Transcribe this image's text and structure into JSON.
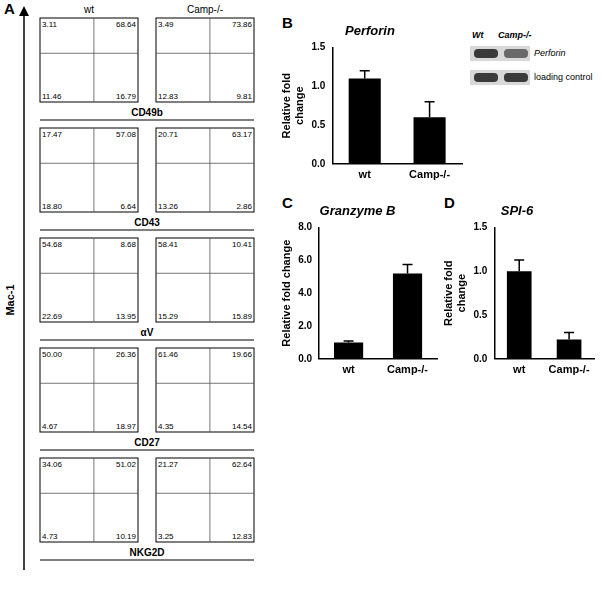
{
  "figure": {
    "panels": [
      "A",
      "B",
      "C",
      "D"
    ],
    "columns": [
      "wt",
      "Camp-/-"
    ],
    "y_label": "Mac-1"
  },
  "chart_data": [
    {
      "type": "quadrant",
      "panel": "A",
      "x_label": "CD49b",
      "tick_labels": false,
      "quadrant_values": [
        [
          3.11,
          68.64,
          11.46,
          16.79
        ],
        [
          3.49,
          73.86,
          12.83,
          9.81
        ]
      ]
    },
    {
      "type": "quadrant",
      "panel": "A",
      "x_label": "CD43",
      "tick_labels": false,
      "quadrant_values": [
        [
          17.47,
          57.08,
          18.8,
          6.64
        ],
        [
          20.71,
          63.17,
          13.26,
          2.86
        ]
      ]
    },
    {
      "type": "quadrant",
      "panel": "A",
      "x_label": "αV",
      "tick_labels": false,
      "quadrant_values": [
        [
          54.68,
          8.68,
          22.69,
          13.95
        ],
        [
          58.41,
          10.41,
          15.29,
          15.89
        ]
      ]
    },
    {
      "type": "quadrant",
      "panel": "A",
      "x_label": "CD27",
      "tick_labels": false,
      "quadrant_values": [
        [
          50.0,
          26.36,
          4.67,
          18.97
        ],
        [
          61.46,
          19.66,
          4.35,
          14.54
        ]
      ]
    },
    {
      "type": "quadrant",
      "panel": "A",
      "x_label": "NKG2D",
      "tick_labels": false,
      "quadrant_values": [
        [
          34.06,
          51.02,
          4.73,
          10.19
        ],
        [
          21.27,
          62.64,
          3.25,
          12.83
        ]
      ]
    },
    {
      "type": "bar",
      "panel": "B",
      "title": "Perforin",
      "categories": [
        "wt",
        "Camp-/-"
      ],
      "values": [
        1.1,
        0.6
      ],
      "errors": [
        0.1,
        0.2
      ],
      "color": "#000000",
      "y_label": "Relative fold change",
      "ylim": [
        0,
        1.5
      ],
      "yticks": [
        {
          "value": 0,
          "label": "0.0"
        },
        {
          "value": 0.5,
          "label": "0.5"
        },
        {
          "value": 1,
          "label": "1.0"
        },
        {
          "value": 1.5,
          "label": "1.5"
        }
      ],
      "grid": false,
      "blot": {
        "lanes": [
          "Wt",
          "Camp-/-"
        ],
        "bands": [
          "Perforin",
          "loading control"
        ]
      }
    },
    {
      "type": "bar",
      "panel": "C",
      "title": "Granzyme B",
      "categories": [
        "wt",
        "Camp-/-"
      ],
      "values": [
        1.0,
        5.2
      ],
      "errors": [
        0.08,
        0.55
      ],
      "color": "#000000",
      "y_label": "Relative fold change",
      "ylim": [
        0,
        8
      ],
      "yticks": [
        {
          "value": 0,
          "label": "0.0"
        },
        {
          "value": 2,
          "label": "2.0"
        },
        {
          "value": 4,
          "label": "4.0"
        },
        {
          "value": 6,
          "label": "6.0"
        },
        {
          "value": 8,
          "label": "8.0"
        }
      ],
      "grid": false
    },
    {
      "type": "bar",
      "panel": "D",
      "title": "SPI-6",
      "categories": [
        "wt",
        "Camp-/-"
      ],
      "values": [
        1.0,
        0.22
      ],
      "errors": [
        0.13,
        0.08
      ],
      "color": "#000000",
      "y_label": "Relative fold change",
      "ylim": [
        0,
        1.5
      ],
      "yticks": [
        {
          "value": 0,
          "label": "0.0"
        },
        {
          "value": 0.5,
          "label": "0.5"
        },
        {
          "value": 1,
          "label": "1.0"
        },
        {
          "value": 1.5,
          "label": "1.5"
        }
      ],
      "grid": false
    }
  ]
}
